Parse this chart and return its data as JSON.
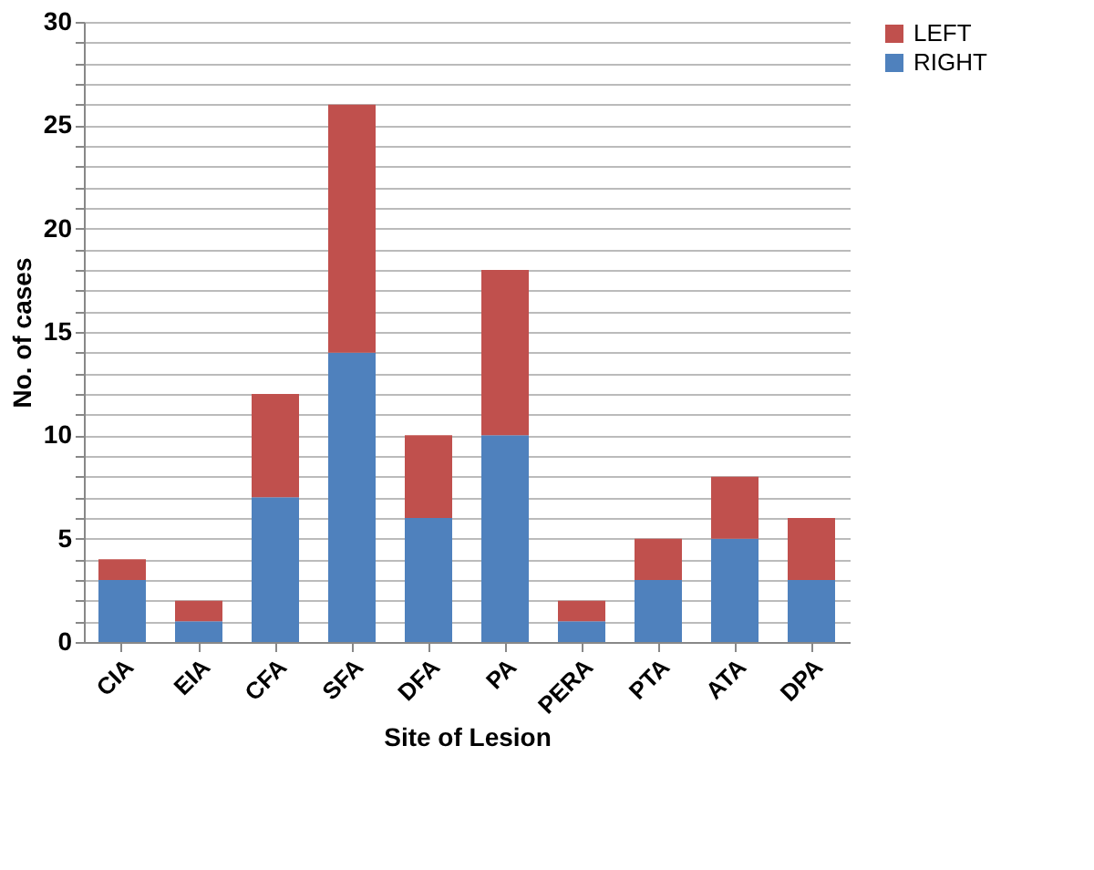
{
  "chart_data": {
    "type": "bar",
    "stacked": true,
    "xlabel": "Site of Lesion",
    "ylabel": "No. of cases",
    "categories": [
      "CIA",
      "EIA",
      "CFA",
      "SFA",
      "DFA",
      "PA",
      "PERA",
      "PTA",
      "ATA",
      "DPA"
    ],
    "series": [
      {
        "name": "RIGHT",
        "color": "#4f81bd",
        "values": [
          3,
          1,
          7,
          14,
          6,
          10,
          1,
          3,
          5,
          3
        ]
      },
      {
        "name": "LEFT",
        "color": "#c0504d",
        "values": [
          1,
          1,
          5,
          12,
          4,
          8,
          1,
          2,
          3,
          3
        ]
      }
    ],
    "ylim": [
      0,
      30
    ],
    "yticks": [
      0,
      {
        "value": 1,
        "label": null
      },
      {
        "value": 2,
        "label": null
      },
      {
        "value": 3,
        "label": null
      },
      {
        "value": 4,
        "label": null
      },
      5,
      {
        "value": 6,
        "label": null
      },
      {
        "value": 7,
        "label": null
      },
      {
        "value": 8,
        "label": null
      },
      {
        "value": 9,
        "label": null
      },
      10,
      {
        "value": 11,
        "label": null
      },
      {
        "value": 12,
        "label": null
      },
      {
        "value": 13,
        "label": null
      },
      {
        "value": 14,
        "label": null
      },
      15,
      {
        "value": 16,
        "label": null
      },
      {
        "value": 17,
        "label": null
      },
      {
        "value": 18,
        "label": null
      },
      {
        "value": 19,
        "label": null
      },
      20,
      {
        "value": 21,
        "label": null
      },
      {
        "value": 22,
        "label": null
      },
      {
        "value": 23,
        "label": null
      },
      {
        "value": 24,
        "label": null
      },
      25,
      {
        "value": 26,
        "label": null
      },
      {
        "value": 27,
        "label": null
      },
      {
        "value": 28,
        "label": null
      },
      {
        "value": 29,
        "label": null
      },
      30
    ],
    "grid": "y",
    "legend": "right"
  }
}
